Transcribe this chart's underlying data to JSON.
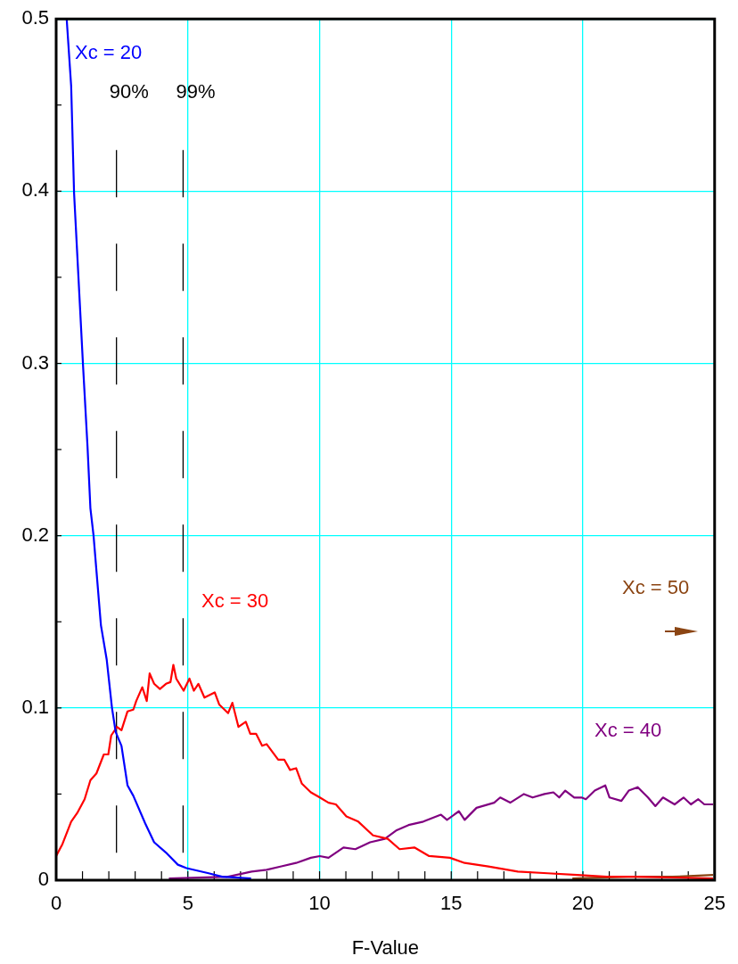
{
  "chart_data": {
    "type": "line",
    "xlabel": "F-Value",
    "xlim": [
      0,
      25
    ],
    "xticks": [
      0,
      5,
      10,
      15,
      20,
      25
    ],
    "ylim": [
      0,
      0.5
    ],
    "yticks": [
      0,
      0.1,
      0.2,
      0.3,
      0.4,
      0.5
    ],
    "grid": true,
    "legend": false,
    "marker": "none",
    "line_style": "solid",
    "series": [
      {
        "name": "Xc = 20",
        "color": "#0000ff",
        "x": [
          0.4,
          0.57,
          0.68,
          1.02,
          1.19,
          1.3,
          1.42,
          1.7,
          1.92,
          2.12,
          2.26,
          2.48,
          2.71,
          2.93,
          3.38,
          3.72,
          4.17,
          4.62,
          4.95,
          5.79,
          6.3,
          7.4
        ],
        "values": [
          0.5,
          0.461,
          0.399,
          0.299,
          0.252,
          0.216,
          0.2,
          0.148,
          0.128,
          0.1,
          0.086,
          0.078,
          0.055,
          0.049,
          0.033,
          0.022,
          0.016,
          0.009,
          0.007,
          0.004,
          0.002,
          0.001
        ]
      },
      {
        "name": "Xc = 30",
        "color": "#ff0000",
        "x": [
          0,
          0.24,
          0.57,
          0.8,
          1.08,
          1.3,
          1.53,
          1.81,
          1.98,
          2.09,
          2.31,
          2.48,
          2.71,
          2.93,
          3.04,
          3.27,
          3.44,
          3.55,
          3.72,
          3.94,
          4.17,
          4.34,
          4.45,
          4.56,
          4.84,
          5.06,
          5.23,
          5.4,
          5.63,
          6.02,
          6.19,
          6.53,
          6.69,
          6.92,
          7.2,
          7.37,
          7.59,
          7.82,
          7.99,
          8.43,
          8.66,
          8.88,
          9.11,
          9.33,
          9.67,
          10.01,
          10.34,
          10.62,
          11.02,
          11.47,
          12.03,
          12.59,
          13.04,
          13.6,
          14.16,
          14.95,
          15.51,
          16.41,
          17.53,
          18.66,
          19.78,
          20.9,
          22.02,
          24.94
        ],
        "values": [
          0.014,
          0.021,
          0.034,
          0.039,
          0.047,
          0.058,
          0.062,
          0.073,
          0.073,
          0.084,
          0.089,
          0.087,
          0.098,
          0.099,
          0.104,
          0.112,
          0.104,
          0.12,
          0.114,
          0.111,
          0.114,
          0.115,
          0.125,
          0.117,
          0.11,
          0.117,
          0.11,
          0.114,
          0.106,
          0.109,
          0.102,
          0.097,
          0.103,
          0.089,
          0.092,
          0.085,
          0.085,
          0.078,
          0.079,
          0.07,
          0.07,
          0.064,
          0.065,
          0.056,
          0.051,
          0.048,
          0.045,
          0.044,
          0.037,
          0.034,
          0.026,
          0.024,
          0.018,
          0.019,
          0.014,
          0.013,
          0.01,
          0.008,
          0.005,
          0.004,
          0.003,
          0.002,
          0.002,
          0.001
        ]
      },
      {
        "name": "Xc = 40",
        "color": "#800080",
        "x": [
          4.28,
          6.53,
          7.42,
          7.99,
          8.55,
          9.11,
          9.67,
          10.01,
          10.34,
          10.91,
          11.36,
          11.92,
          12.48,
          12.93,
          13.38,
          13.94,
          14.61,
          14.84,
          15.29,
          15.51,
          15.96,
          16.63,
          16.86,
          17.24,
          17.76,
          18.09,
          18.54,
          18.88,
          19.1,
          19.33,
          19.67,
          19.95,
          20.11,
          20.45,
          20.85,
          21.01,
          21.46,
          21.74,
          22.08,
          22.47,
          22.75,
          23.04,
          23.48,
          23.82,
          24.1,
          24.38,
          24.61,
          24.94
        ],
        "values": [
          0.001,
          0.002,
          0.005,
          0.006,
          0.008,
          0.01,
          0.013,
          0.014,
          0.013,
          0.019,
          0.018,
          0.022,
          0.024,
          0.029,
          0.032,
          0.034,
          0.038,
          0.035,
          0.04,
          0.035,
          0.042,
          0.045,
          0.048,
          0.045,
          0.05,
          0.048,
          0.05,
          0.051,
          0.048,
          0.052,
          0.048,
          0.048,
          0.047,
          0.052,
          0.055,
          0.048,
          0.046,
          0.052,
          0.054,
          0.048,
          0.043,
          0.048,
          0.044,
          0.048,
          0.044,
          0.047,
          0.044,
          0.044
        ]
      },
      {
        "name": "Xc = 50",
        "color": "#8b4513",
        "x": [
          19.6,
          21.7,
          23.4,
          24.94
        ],
        "values": [
          0.001,
          0.002,
          0.002,
          0.003
        ]
      }
    ],
    "annotations": [
      "90%",
      "99%"
    ],
    "ref_lines": [
      {
        "axis": "x",
        "value": 2.29,
        "color": "#000000",
        "line_style": "dashed"
      },
      {
        "axis": "x",
        "value": 4.82,
        "color": "#000000",
        "line_style": "dashed"
      }
    ]
  }
}
